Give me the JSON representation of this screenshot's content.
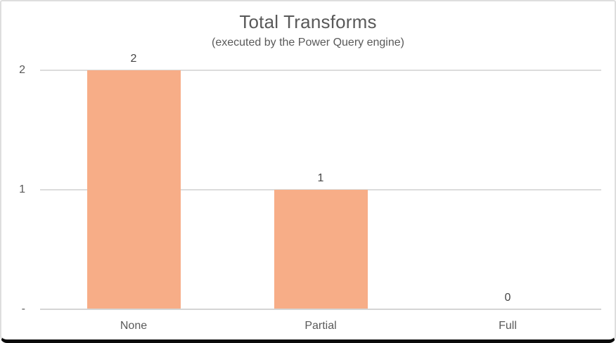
{
  "card": {
    "title": "Total Transforms",
    "subtitle": "(executed by the Power Query engine)"
  },
  "chart_data": {
    "type": "bar",
    "title": "Total Transforms",
    "subtitle": "(executed by the Power Query engine)",
    "categories": [
      "None",
      "Partial",
      "Full"
    ],
    "values": [
      2,
      1,
      0
    ],
    "data_labels": [
      "2",
      "1",
      "0"
    ],
    "xlabel": "",
    "ylabel": "",
    "ylim": [
      0,
      2
    ],
    "yticks": [
      {
        "value": 2,
        "label": "2"
      },
      {
        "value": 1,
        "label": "1"
      },
      {
        "value": 0,
        "label": "-"
      }
    ],
    "grid": true,
    "legend": false,
    "colors": {
      "bar": "#F7AD87",
      "gridline": "#DCDCDC",
      "axis_line": "#D4D4D4",
      "title_text": "#595959",
      "tick_text": "#595959",
      "data_label_text": "#444444"
    }
  }
}
